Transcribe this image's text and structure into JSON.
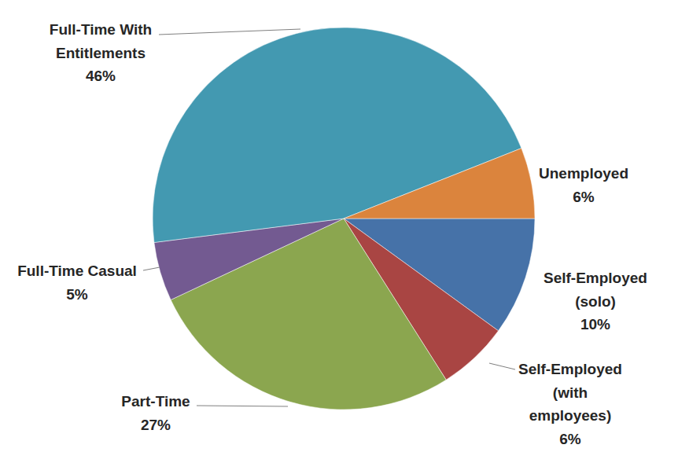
{
  "chart_data": {
    "type": "pie",
    "categories": [
      "Self-Employed (solo)",
      "Self-Employed (with employees)",
      "Part-Time",
      "Full-Time Casual",
      "Full-Time With Entitlements",
      "Unemployed"
    ],
    "values": [
      10,
      6,
      27,
      5,
      46,
      6
    ],
    "value_labels": [
      "10%",
      "6%",
      "27%",
      "5%",
      "46%",
      "6%"
    ],
    "colors": [
      "#4672a8",
      "#a94543",
      "#8ba64f",
      "#735a91",
      "#4399b1",
      "#db843d"
    ],
    "data_labels": true
  }
}
